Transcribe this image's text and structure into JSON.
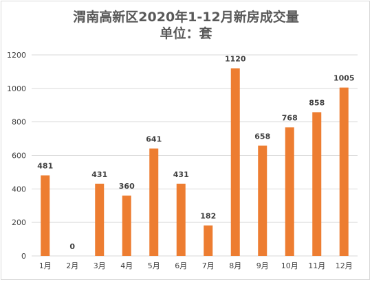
{
  "chart_data": {
    "type": "bar",
    "title": "渭南高新区2020年1-12月新房成交量",
    "subtitle": "单位：套",
    "categories": [
      "1月",
      "2月",
      "3月",
      "4月",
      "5月",
      "6月",
      "7月",
      "8月",
      "9月",
      "10月",
      "11月",
      "12月"
    ],
    "values": [
      481,
      0,
      431,
      360,
      641,
      431,
      182,
      1120,
      658,
      768,
      858,
      1005
    ],
    "data_labels": [
      "481",
      "0",
      "431",
      "360",
      "641",
      "431",
      "182",
      "1120",
      "658",
      "768",
      "858",
      "1005"
    ],
    "ylim": [
      0,
      1200
    ],
    "yticks": [
      0,
      200,
      400,
      600,
      800,
      1000,
      1200
    ],
    "ytick_labels": [
      "0",
      "200",
      "400",
      "600",
      "800",
      "1000",
      "1200"
    ],
    "xlabel": "",
    "ylabel": "",
    "grid": true,
    "legend": "none",
    "colors": {
      "bar": "#ED7D31",
      "grid": "#D9D9D9",
      "text": "#404040",
      "title": "#595959"
    }
  }
}
